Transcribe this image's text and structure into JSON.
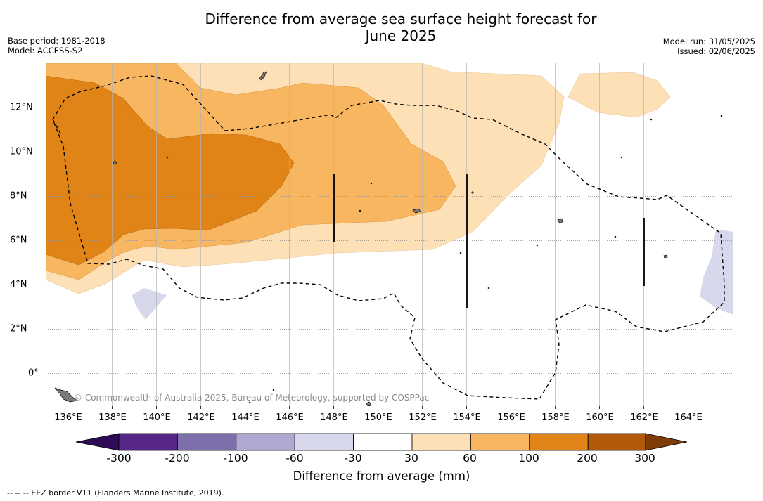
{
  "title_line1": "Difference from average sea surface height forecast for",
  "title_line2": "June 2025",
  "meta_left": {
    "base_period": "Base period: 1981-2018",
    "model": "Model: ACCESS-S2"
  },
  "meta_right": {
    "model_run": "Model run: 31/05/2025",
    "issued": "Issued: 02/06/2025"
  },
  "x_ticks": [
    "136°E",
    "138°E",
    "140°E",
    "142°E",
    "144°E",
    "146°E",
    "148°E",
    "150°E",
    "152°E",
    "154°E",
    "156°E",
    "158°E",
    "160°E",
    "162°E",
    "164°E"
  ],
  "y_ticks": [
    "12°N",
    "10°N",
    "8°N",
    "6°N",
    "4°N",
    "2°N",
    "0°"
  ],
  "credit": "© Commonwealth of Australia 2025, Bureau of Meteorology, supported by COSPPac",
  "colorbar": {
    "title": "Difference from average (mm)",
    "labels": [
      "-300",
      "-200",
      "-100",
      "-60",
      "-30",
      "30",
      "60",
      "100",
      "200",
      "300"
    ],
    "colors": [
      "#2d0b55",
      "#562689",
      "#7d6faa",
      "#afa8d0",
      "#d8d8ec",
      "#ffffff",
      "#fde0b6",
      "#f9b660",
      "#e08417",
      "#b15a0a",
      "#7f3b08"
    ]
  },
  "footnote": "-- -- -- EEZ border V11 (Flanders Marine Institute, 2019)."
}
